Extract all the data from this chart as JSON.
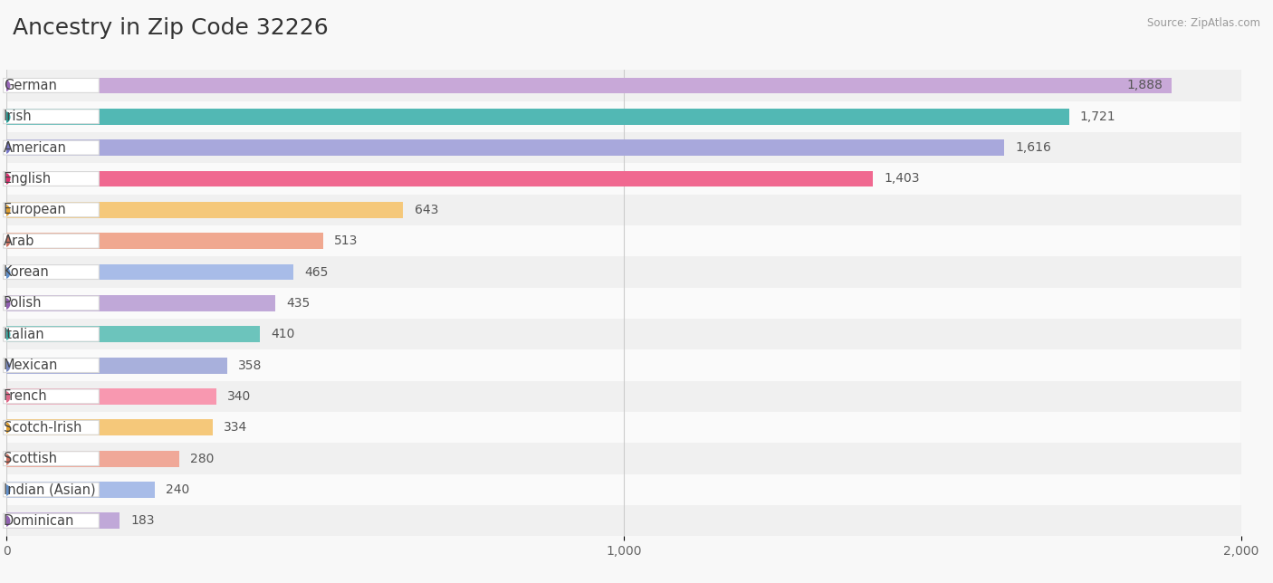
{
  "title": "Ancestry in Zip Code 32226",
  "source_text": "Source: ZipAtlas.com",
  "categories": [
    "German",
    "Irish",
    "American",
    "English",
    "European",
    "Arab",
    "Korean",
    "Polish",
    "Italian",
    "Mexican",
    "French",
    "Scotch-Irish",
    "Scottish",
    "Indian (Asian)",
    "Dominican"
  ],
  "values": [
    1888,
    1721,
    1616,
    1403,
    643,
    513,
    465,
    435,
    410,
    358,
    340,
    334,
    280,
    240,
    183
  ],
  "bar_colors": [
    "#c8a8d8",
    "#52b8b4",
    "#a8a8dc",
    "#f06890",
    "#f5c87a",
    "#f0a890",
    "#a8bce8",
    "#c0a8d8",
    "#6cc4bc",
    "#a8b0dc",
    "#f898b0",
    "#f5c87a",
    "#f0a898",
    "#a8bce8",
    "#c0a8d8"
  ],
  "dot_colors": [
    "#9868b8",
    "#2aa099",
    "#7878c8",
    "#e03070",
    "#e0a030",
    "#cc7060",
    "#6090cc",
    "#9060b0",
    "#3ab0a8",
    "#7888c0",
    "#e06888",
    "#e0a030",
    "#cc7060",
    "#6090cc",
    "#9060b0"
  ],
  "background_color": "#f8f8f8",
  "row_bg_odd": "#f0f0f0",
  "row_bg_even": "#fafafa",
  "xlim": [
    0,
    2000
  ],
  "xticks": [
    0,
    1000,
    2000
  ],
  "title_fontsize": 18,
  "label_fontsize": 10.5,
  "value_fontsize": 10
}
